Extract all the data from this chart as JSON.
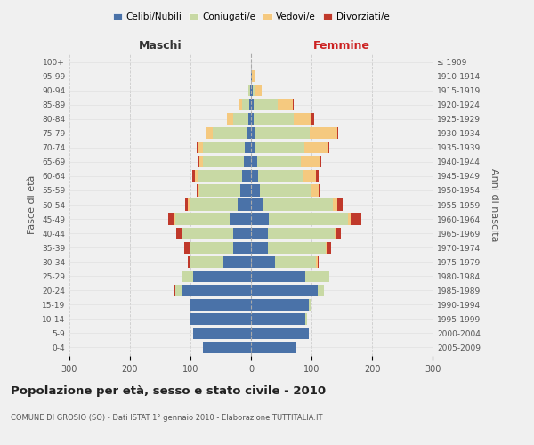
{
  "age_groups": [
    "0-4",
    "5-9",
    "10-14",
    "15-19",
    "20-24",
    "25-29",
    "30-34",
    "35-39",
    "40-44",
    "45-49",
    "50-54",
    "55-59",
    "60-64",
    "65-69",
    "70-74",
    "75-79",
    "80-84",
    "85-89",
    "90-94",
    "95-99",
    "100+"
  ],
  "birth_years": [
    "2005-2009",
    "2000-2004",
    "1995-1999",
    "1990-1994",
    "1985-1989",
    "1980-1984",
    "1975-1979",
    "1970-1974",
    "1965-1969",
    "1960-1964",
    "1955-1959",
    "1950-1954",
    "1945-1949",
    "1940-1944",
    "1935-1939",
    "1930-1934",
    "1925-1929",
    "1920-1924",
    "1915-1919",
    "1910-1914",
    "≤ 1909"
  ],
  "colors": {
    "celibi": "#4a72a8",
    "coniugati": "#c8d9a4",
    "vedovi": "#f5c97f",
    "divorziati": "#c0392b"
  },
  "maschi": {
    "celibi": [
      80,
      95,
      100,
      100,
      115,
      95,
      45,
      30,
      30,
      35,
      22,
      18,
      15,
      12,
      10,
      8,
      5,
      3,
      2,
      0,
      0
    ],
    "coniugati": [
      0,
      0,
      2,
      2,
      10,
      18,
      55,
      72,
      85,
      90,
      80,
      68,
      72,
      68,
      70,
      55,
      25,
      12,
      3,
      0,
      0
    ],
    "vedovi": [
      0,
      0,
      0,
      0,
      0,
      0,
      0,
      0,
      0,
      2,
      2,
      2,
      5,
      5,
      8,
      10,
      10,
      5,
      0,
      0,
      0
    ],
    "divorziati": [
      0,
      0,
      0,
      0,
      2,
      0,
      5,
      8,
      8,
      10,
      5,
      2,
      5,
      2,
      2,
      0,
      0,
      0,
      0,
      0,
      0
    ]
  },
  "femmine": {
    "celibi": [
      75,
      95,
      90,
      95,
      110,
      90,
      40,
      28,
      28,
      30,
      20,
      15,
      12,
      10,
      8,
      7,
      5,
      4,
      3,
      2,
      0
    ],
    "coniugati": [
      0,
      0,
      2,
      3,
      10,
      40,
      68,
      95,
      110,
      130,
      115,
      85,
      75,
      72,
      80,
      90,
      65,
      40,
      5,
      0,
      0
    ],
    "vedovi": [
      0,
      0,
      0,
      0,
      0,
      0,
      2,
      2,
      2,
      5,
      8,
      12,
      20,
      32,
      40,
      45,
      30,
      25,
      10,
      5,
      0
    ],
    "divorziati": [
      0,
      0,
      0,
      0,
      0,
      0,
      2,
      8,
      8,
      18,
      8,
      2,
      5,
      2,
      2,
      2,
      5,
      2,
      0,
      0,
      0
    ]
  },
  "xlim": 300,
  "title": "Popolazione per età, sesso e stato civile - 2010",
  "subtitle": "COMUNE DI GROSIO (SO) - Dati ISTAT 1° gennaio 2010 - Elaborazione TUTTITALIA.IT",
  "xlabel_left": "Maschi",
  "xlabel_right": "Femmine",
  "ylabel_left": "Fasce di età",
  "ylabel_right": "Anni di nascita",
  "legend_labels": [
    "Celibi/Nubili",
    "Coniugati/e",
    "Vedovi/e",
    "Divorziati/e"
  ],
  "background_color": "#f0f0f0",
  "grid_color": "#cccccc"
}
